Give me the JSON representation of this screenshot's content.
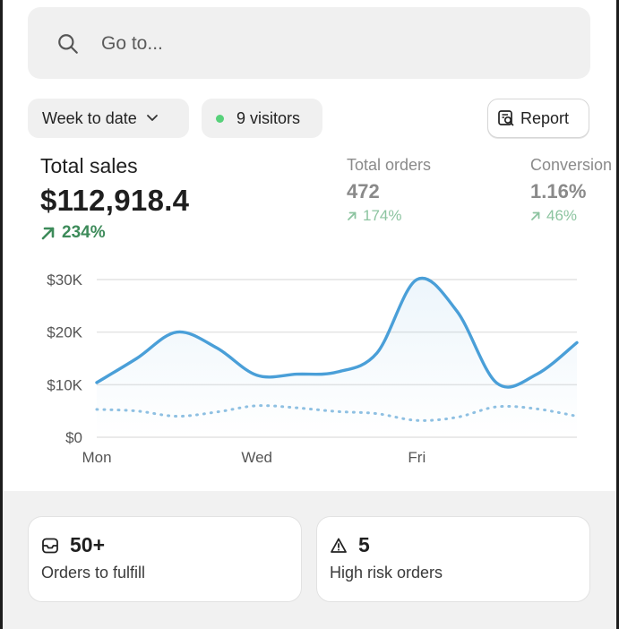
{
  "search": {
    "placeholder": "Go to..."
  },
  "filters": {
    "range_label": "Week to date",
    "visitors_label": "9 visitors",
    "report_label": "Report"
  },
  "metrics": {
    "total_sales": {
      "label": "Total sales",
      "value": "$112,918.4",
      "change": "234%"
    },
    "total_orders": {
      "label": "Total orders",
      "value": "472",
      "change": "174%"
    },
    "conversion": {
      "label": "Conversion",
      "value": "1.16%",
      "change": "46%"
    }
  },
  "chart_data": {
    "type": "line",
    "x_tick_labels": [
      "Mon",
      "Wed",
      "Fri"
    ],
    "y_tick_labels": [
      "$30K",
      "$20K",
      "$10K",
      "$0"
    ],
    "ylim": [
      0,
      30000
    ],
    "x": [
      0,
      0.5,
      1,
      1.5,
      2,
      2.5,
      3,
      3.5,
      4,
      4.5,
      5,
      5.5,
      6
    ],
    "series": [
      {
        "style": "solid",
        "color": "#4a9fd8",
        "values": [
          10400,
          15000,
          20000,
          17000,
          11800,
          12000,
          12400,
          16000,
          30000,
          24000,
          10300,
          12000,
          18000
        ]
      },
      {
        "style": "dotted",
        "color": "#8ec0e2",
        "values": [
          5300,
          5000,
          4000,
          4800,
          6000,
          5600,
          4900,
          4500,
          3200,
          3800,
          5800,
          5400,
          4000
        ]
      }
    ],
    "grid": true
  },
  "cards": {
    "fulfill": {
      "value": "50+",
      "label": "Orders to fulfill"
    },
    "risk": {
      "value": "5",
      "label": "High risk orders"
    }
  },
  "colors": {
    "accent_line": "#4a9fd8",
    "positive": "#3d8b5a",
    "visitor_dot": "#57d17a"
  }
}
